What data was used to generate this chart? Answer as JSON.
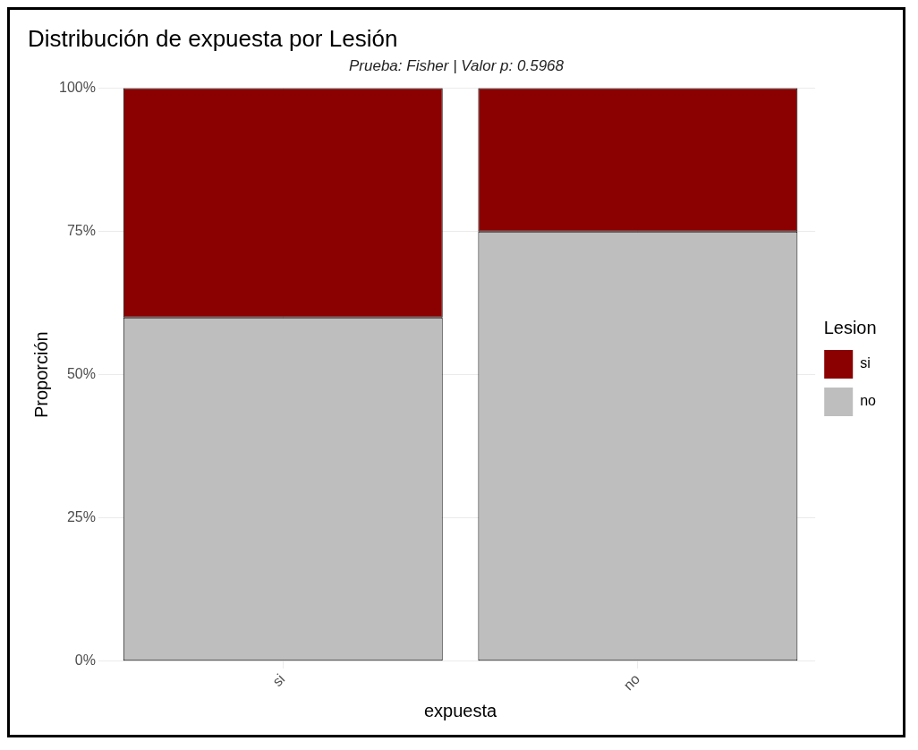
{
  "chart_data": {
    "type": "bar",
    "title": "Distribución de expuesta por Lesión",
    "subtitle": "Prueba: Fisher | Valor p: 0.5968",
    "xlabel": "expuesta",
    "ylabel": "Proporción",
    "legend_title": "Lesion",
    "categories": [
      "si",
      "no"
    ],
    "series": [
      {
        "name": "no",
        "color": "#bebebe",
        "values": [
          60,
          75
        ]
      },
      {
        "name": "si",
        "color": "#8b0000",
        "values": [
          40,
          25
        ]
      }
    ],
    "stacked": true,
    "ylim": [
      0,
      100
    ],
    "yticks": [
      {
        "value": 0,
        "label": "0%"
      },
      {
        "value": 25,
        "label": "25%"
      },
      {
        "value": 50,
        "label": "50%"
      },
      {
        "value": 75,
        "label": "75%"
      },
      {
        "value": 100,
        "label": "100%"
      }
    ],
    "grid": true,
    "legend": "right"
  }
}
